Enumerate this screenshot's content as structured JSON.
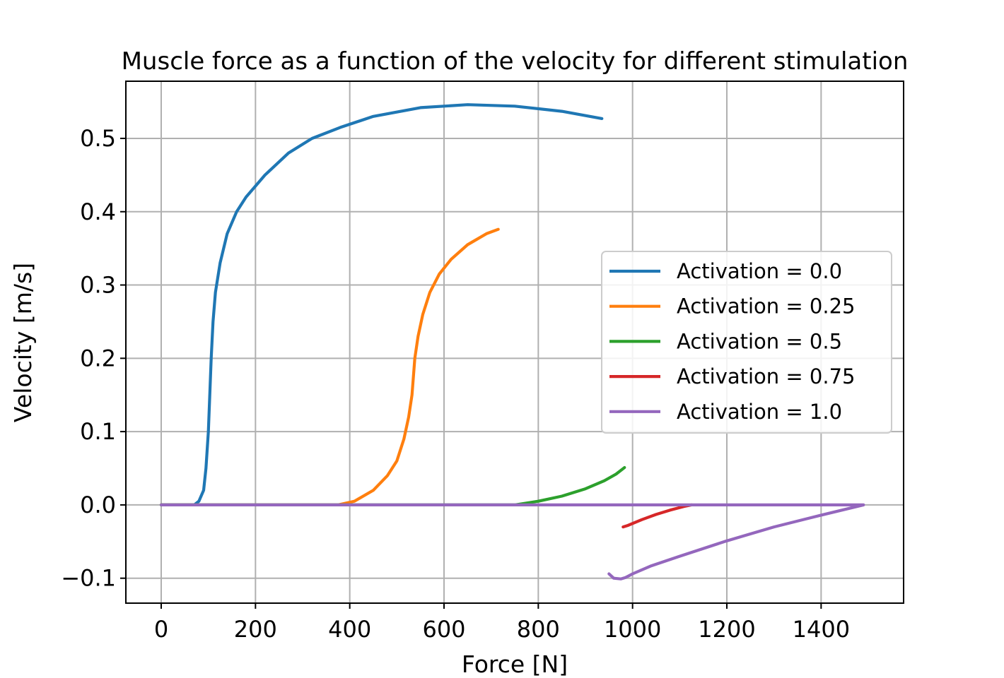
{
  "chart_data": {
    "type": "line",
    "title": "Muscle force as a function of the velocity for different stimulation",
    "xlabel": "Force [N]",
    "ylabel": "Velocity [m/s]",
    "xlim": [
      -75,
      1575
    ],
    "ylim": [
      -0.134,
      0.578
    ],
    "xticks": [
      0,
      200,
      400,
      600,
      800,
      1000,
      1200,
      1400
    ],
    "yticks": [
      -0.1,
      0.0,
      0.1,
      0.2,
      0.3,
      0.4,
      0.5
    ],
    "ytick_labels": [
      "−0.1",
      "0.0",
      "0.1",
      "0.2",
      "0.3",
      "0.4",
      "0.5"
    ],
    "grid": true,
    "legend_position": "center-right",
    "series": [
      {
        "name": "Activation = 0.0",
        "color": "#1f77b4",
        "points": [
          [
            0,
            0
          ],
          [
            70,
            0
          ],
          [
            80,
            0.005
          ],
          [
            90,
            0.02
          ],
          [
            95,
            0.05
          ],
          [
            100,
            0.1
          ],
          [
            103,
            0.15
          ],
          [
            106,
            0.2
          ],
          [
            110,
            0.25
          ],
          [
            115,
            0.29
          ],
          [
            125,
            0.33
          ],
          [
            140,
            0.37
          ],
          [
            160,
            0.4
          ],
          [
            180,
            0.42
          ],
          [
            220,
            0.45
          ],
          [
            270,
            0.48
          ],
          [
            320,
            0.5
          ],
          [
            380,
            0.515
          ],
          [
            450,
            0.53
          ],
          [
            550,
            0.542
          ],
          [
            650,
            0.546
          ],
          [
            750,
            0.544
          ],
          [
            850,
            0.537
          ],
          [
            935,
            0.527
          ]
        ]
      },
      {
        "name": "Activation = 0.25",
        "color": "#ff7f0e",
        "points": [
          [
            0,
            0
          ],
          [
            375,
            0
          ],
          [
            410,
            0.005
          ],
          [
            450,
            0.02
          ],
          [
            480,
            0.04
          ],
          [
            500,
            0.06
          ],
          [
            515,
            0.09
          ],
          [
            525,
            0.12
          ],
          [
            532,
            0.15
          ],
          [
            538,
            0.2
          ],
          [
            545,
            0.23
          ],
          [
            555,
            0.26
          ],
          [
            570,
            0.29
          ],
          [
            590,
            0.315
          ],
          [
            615,
            0.335
          ],
          [
            650,
            0.355
          ],
          [
            690,
            0.37
          ],
          [
            715,
            0.376
          ]
        ]
      },
      {
        "name": "Activation = 0.5",
        "color": "#2ca02c",
        "points": [
          [
            0,
            0
          ],
          [
            750,
            0
          ],
          [
            800,
            0.005
          ],
          [
            850,
            0.012
          ],
          [
            900,
            0.022
          ],
          [
            940,
            0.033
          ],
          [
            965,
            0.042
          ],
          [
            983,
            0.051
          ]
        ]
      },
      {
        "name": "Activation = 0.75",
        "color": "#d62728",
        "points": [
          [
            980,
            -0.03
          ],
          [
            990,
            -0.028
          ],
          [
            1020,
            -0.02
          ],
          [
            1050,
            -0.013
          ],
          [
            1080,
            -0.007
          ],
          [
            1110,
            -0.002
          ],
          [
            1125,
            0
          ]
        ]
      },
      {
        "name": "Activation = 1.0",
        "color": "#9467bd",
        "points": [
          [
            0,
            0
          ],
          [
            1490,
            0
          ],
          [
            1400,
            -0.014
          ],
          [
            1300,
            -0.03
          ],
          [
            1200,
            -0.049
          ],
          [
            1100,
            -0.07
          ],
          [
            1040,
            -0.083
          ],
          [
            1000,
            -0.094
          ],
          [
            985,
            -0.099
          ],
          [
            975,
            -0.101
          ],
          [
            960,
            -0.1
          ],
          [
            950,
            -0.094
          ]
        ]
      }
    ]
  }
}
